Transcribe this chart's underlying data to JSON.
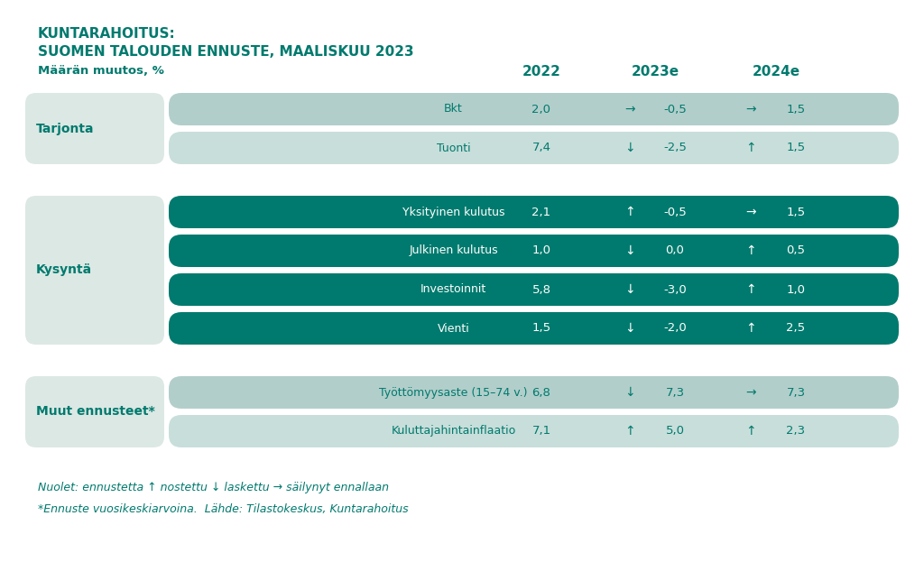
{
  "title_line1": "KUNTARAHOITUS:",
  "title_line2": "SUOMEN TALOUDEN ENNUSTE, MAALISKUU 2023",
  "subtitle": "Määrän muutos, %",
  "col_headers": [
    "2022",
    "2023e",
    "2024e"
  ],
  "bg_color": "#ffffff",
  "left_panel_color": "#dce8e4",
  "dark_teal": "#007a6e",
  "light_teal_row1": "#b2ceca",
  "light_teal_row2": "#c8deda",
  "header_text_color": "#007a6e",
  "groups": [
    {
      "label": "Tarjonta",
      "rows": [
        {
          "name": "Bkt",
          "val2022": "2,0",
          "arrow2023": "→",
          "val2023": "-0,5",
          "arrow2024": "→",
          "val2024": "1,5",
          "dark": false
        },
        {
          "name": "Tuonti",
          "val2022": "7,4",
          "arrow2023": "↓",
          "val2023": "-2,5",
          "arrow2024": "↑",
          "val2024": "1,5",
          "dark": false
        }
      ]
    },
    {
      "label": "Kysyntä",
      "rows": [
        {
          "name": "Yksityinen kulutus",
          "val2022": "2,1",
          "arrow2023": "↑",
          "val2023": "-0,5",
          "arrow2024": "→",
          "val2024": "1,5",
          "dark": true
        },
        {
          "name": "Julkinen kulutus",
          "val2022": "1,0",
          "arrow2023": "↓",
          "val2023": "0,0",
          "arrow2024": "↑",
          "val2024": "0,5",
          "dark": true
        },
        {
          "name": "Investoinnit",
          "val2022": "5,8",
          "arrow2023": "↓",
          "val2023": "-3,0",
          "arrow2024": "↑",
          "val2024": "1,0",
          "dark": true
        },
        {
          "name": "Vienti",
          "val2022": "1,5",
          "arrow2023": "↓",
          "val2023": "-2,0",
          "arrow2024": "↑",
          "val2024": "2,5",
          "dark": true
        }
      ]
    },
    {
      "label": "Muut ennusteet*",
      "rows": [
        {
          "name": "Työttömyysaste (15–74 v.)",
          "val2022": "6,8",
          "arrow2023": "↓",
          "val2023": "7,3",
          "arrow2024": "→",
          "val2024": "7,3",
          "dark": false
        },
        {
          "name": "Kuluttajahintainflaatio",
          "val2022": "7,1",
          "arrow2023": "↑",
          "val2023": "5,0",
          "arrow2024": "↑",
          "val2024": "2,3",
          "dark": false
        }
      ]
    }
  ],
  "footer_line1": "Nuolet: ennustetta ↑ nostettu ↓ laskettu → säilynyt ennallaan",
  "footer_line2": "*Ennuste vuosikeskiarvoina.  Lähde: Tilastokeskus, Kuntarahoitus"
}
